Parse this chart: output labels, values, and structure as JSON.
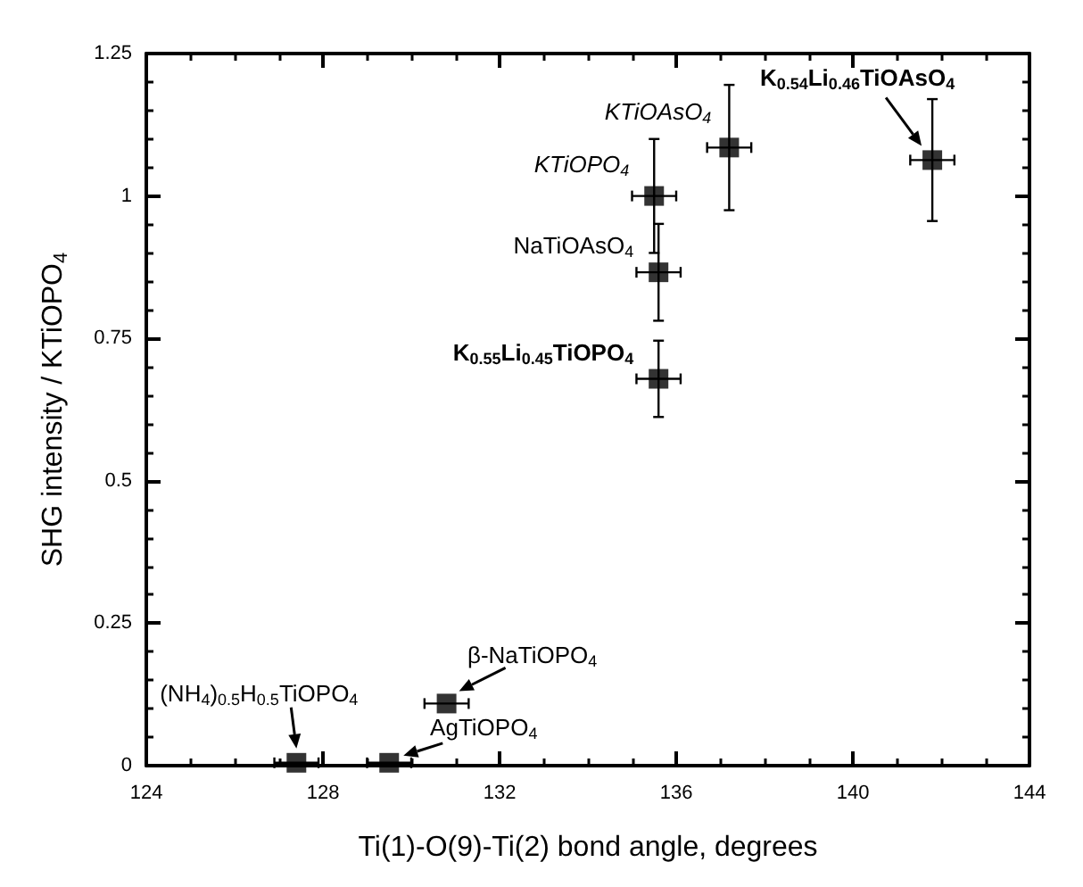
{
  "chart_data": {
    "type": "scatter",
    "xlabel": "Ti(1)-O(9)-Ti(2) bond angle, degrees",
    "ylabel": "SHG intensity / KTiOPO$_{4}$",
    "x": [
      137.2,
      135.5,
      135.6,
      135.6,
      141.8,
      130.8,
      129.5,
      127.4
    ],
    "values": [
      1.085,
      1.0,
      0.866,
      0.679,
      1.063,
      0.109,
      0.005,
      0.005
    ],
    "errors": [
      0.11,
      0.1,
      0.085,
      0.067,
      0.107,
      null,
      null,
      null
    ],
    "xerrors": [
      0.5,
      0.5,
      0.5,
      0.5,
      0.5,
      0.5,
      0.5,
      0.5
    ],
    "color": "#000000",
    "marker": "square",
    "xlim": [
      124,
      144
    ],
    "xticks": [
      124,
      128,
      132,
      136,
      140,
      144
    ],
    "ylim": [
      0,
      1.25
    ],
    "yticks": [
      0,
      0.25,
      0.5,
      0.75,
      1,
      1.25
    ],
    "annotations": [
      {
        "text": "KTiOAsO$_{4}$",
        "x": 137.2,
        "y": 1.085
      },
      {
        "text": "KTiOPO$_{4}$",
        "x": 135.5,
        "y": 1.0
      },
      {
        "text": "NaTiOAsO$_{4}$",
        "x": 135.6,
        "y": 0.866
      },
      {
        "text": "K$_{0.55}$Li$_{0.45}$TiOPO$_{4}$",
        "x": 135.6,
        "y": 0.679
      },
      {
        "text": "K$_{0.54}$Li$_{0.46}$TiOAsO$_{4}$",
        "x": 141.8,
        "y": 1.063
      },
      {
        "text": "β-NaTiOPO$_{4}$",
        "x": 130.8,
        "y": 0.109
      },
      {
        "text": "AgTiOPO$_{4}$",
        "x": 129.5,
        "y": 0.005
      },
      {
        "text": "(NH$_{4}$)$_{0.5}$H$_{0.5}$TiOPO$_{4}$",
        "x": 127.4,
        "y": 0.005
      }
    ]
  }
}
